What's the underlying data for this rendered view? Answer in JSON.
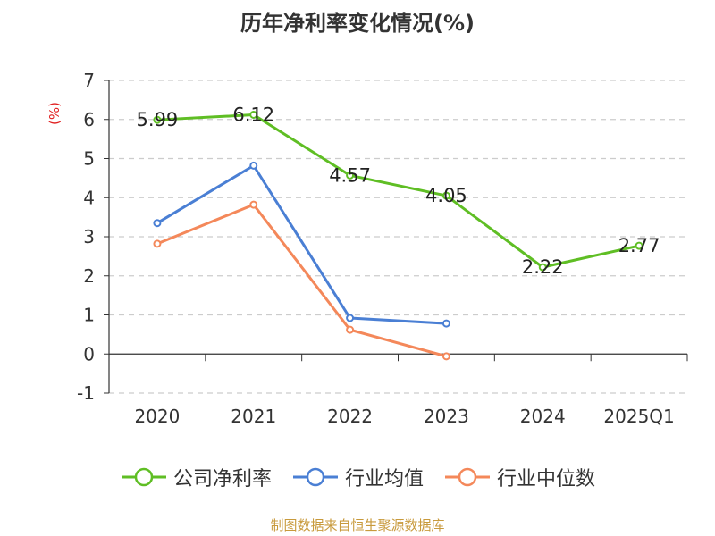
{
  "chart_data": {
    "type": "line",
    "title": "历年净利率变化情况(%)",
    "ylabel": "(%)",
    "xlabel": "",
    "categories": [
      "2020",
      "2021",
      "2022",
      "2023",
      "2024",
      "2025Q1"
    ],
    "ylim": [
      -1,
      7
    ],
    "yticks": [
      -1,
      0,
      1,
      2,
      3,
      4,
      5,
      6,
      7
    ],
    "grid": true,
    "legend_position": "bottom",
    "series": [
      {
        "name": "公司净利率",
        "color": "#5fbe24",
        "values": [
          5.99,
          6.12,
          4.57,
          4.05,
          2.22,
          2.77
        ],
        "labels": [
          "5.99",
          "6.12",
          "4.57",
          "4.05",
          "2.22",
          "2.77"
        ]
      },
      {
        "name": "行业均值",
        "color": "#4a7fd4",
        "values": [
          3.35,
          4.82,
          0.92,
          0.78,
          null,
          null
        ]
      },
      {
        "name": "行业中位数",
        "color": "#f4885a",
        "values": [
          2.82,
          3.82,
          0.62,
          -0.06,
          null,
          null
        ]
      }
    ]
  },
  "footer": {
    "source": "制图数据来自恒生聚源数据库"
  }
}
